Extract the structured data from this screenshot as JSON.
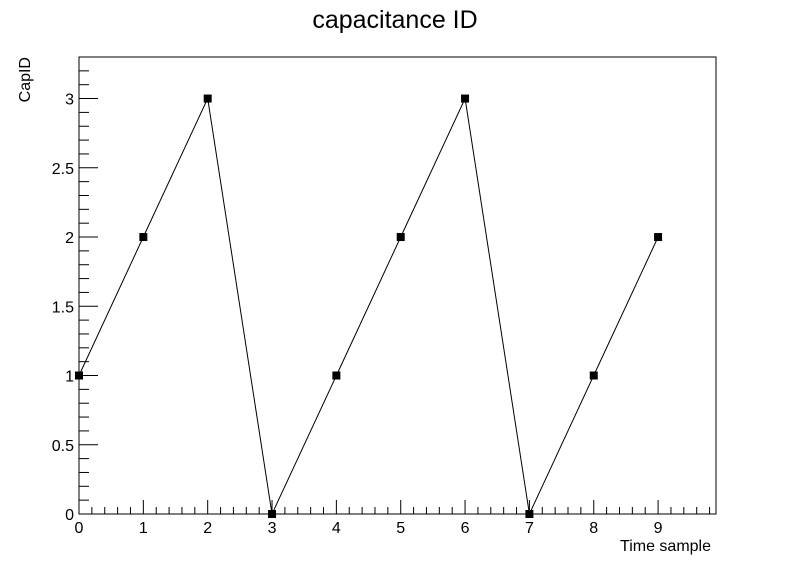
{
  "chart_data": {
    "type": "line",
    "title": "capacitance ID",
    "xlabel": "Time sample",
    "ylabel": "CapID",
    "x": [
      0,
      1,
      2,
      3,
      4,
      5,
      6,
      7,
      8,
      9
    ],
    "series": [
      {
        "values": [
          1,
          2,
          3,
          0,
          1,
          2,
          3,
          0,
          1,
          2
        ]
      }
    ],
    "xlim": [
      0,
      9.9
    ],
    "ylim": [
      0,
      3.3
    ],
    "x_ticks": [
      "0",
      "1",
      "2",
      "3",
      "4",
      "5",
      "6",
      "7",
      "8",
      "9"
    ],
    "y_ticks": [
      "0",
      "0.5",
      "1",
      "1.5",
      "2",
      "2.5",
      "3"
    ],
    "grid": false,
    "marker": "square",
    "line_color": "#000000"
  }
}
